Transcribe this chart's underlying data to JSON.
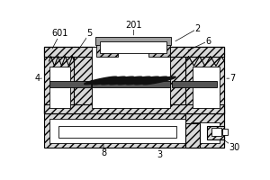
{
  "bg_color": "#ffffff",
  "line_color": "#000000",
  "gray_dark": "#707070",
  "gray_mid": "#b0b0b0",
  "gray_light": "#d8d8d8",
  "label_fontsize": 7.0
}
